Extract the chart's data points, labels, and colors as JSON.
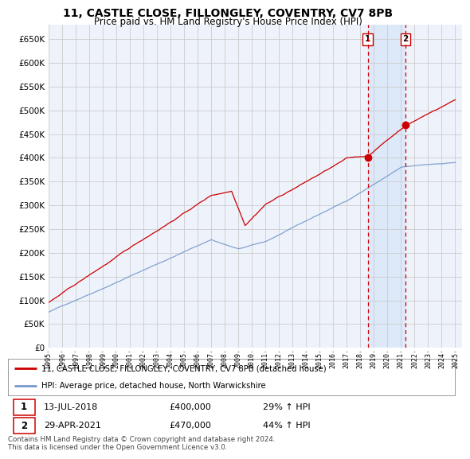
{
  "title": "11, CASTLE CLOSE, FILLONGLEY, COVENTRY, CV7 8PB",
  "subtitle": "Price paid vs. HM Land Registry's House Price Index (HPI)",
  "title_fontsize": 10,
  "subtitle_fontsize": 8.5,
  "background_color": "#ffffff",
  "plot_bg_color": "#eef2fb",
  "grid_color": "#cccccc",
  "red_line_color": "#cc0000",
  "blue_line_color": "#7799cc",
  "shade_color": "#dde8f8",
  "annotation1": {
    "label": "1",
    "date": "13-JUL-2018",
    "price": "£400,000",
    "hpi": "29% ↑ HPI"
  },
  "annotation2": {
    "label": "2",
    "date": "29-APR-2021",
    "price": "£470,000",
    "hpi": "44% ↑ HPI"
  },
  "legend_line1": "11, CASTLE CLOSE, FILLONGLEY, COVENTRY, CV7 8PB (detached house)",
  "legend_line2": "HPI: Average price, detached house, North Warwickshire",
  "footer": "Contains HM Land Registry data © Crown copyright and database right 2024.\nThis data is licensed under the Open Government Licence v3.0.",
  "ylim": [
    0,
    680000
  ],
  "yticks": [
    0,
    50000,
    100000,
    150000,
    200000,
    250000,
    300000,
    350000,
    400000,
    450000,
    500000,
    550000,
    600000,
    650000
  ],
  "marker1_year": 2018.54,
  "marker1_val": 400000,
  "marker2_year": 2021.33,
  "marker2_val": 470000
}
